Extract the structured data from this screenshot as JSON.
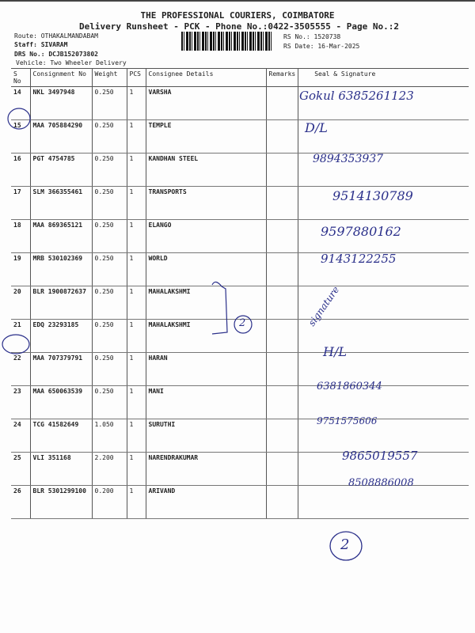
{
  "header": {
    "company": "THE PROFESSIONAL COURIERS, COIMBATORE",
    "subtitle": "Delivery Runsheet - PCK - Phone No.:0422-3505555 - Page No.:2",
    "route": "Route: OTHAKALMANDABAM",
    "staff": "Staff: SIVARAM",
    "drs": "DRS No.: DCJB152073802",
    "vehicle": "Vehicle: Two Wheeler Delivery",
    "rs_no": "RS No.: 1520738",
    "rs_date": "RS Date: 16-Mar-2025"
  },
  "table": {
    "columns": [
      "S No",
      "Consignment No",
      "Weight",
      "PCS",
      "Consignee Details",
      "Remarks",
      "Seal & Signature"
    ],
    "rows": [
      {
        "sno": "14",
        "cno": "NKL 3497948",
        "weight": "0.250",
        "pcs": "1",
        "consignee": "VARSHA"
      },
      {
        "sno": "15",
        "cno": "MAA 705884290",
        "weight": "0.250",
        "pcs": "1",
        "consignee": "TEMPLE"
      },
      {
        "sno": "16",
        "cno": "PGT 4754785",
        "weight": "0.250",
        "pcs": "1",
        "consignee": "KANDHAN STEEL"
      },
      {
        "sno": "17",
        "cno": "SLM 366355461",
        "weight": "0.250",
        "pcs": "1",
        "consignee": "TRANSPORTS"
      },
      {
        "sno": "18",
        "cno": "MAA 869365121",
        "weight": "0.250",
        "pcs": "1",
        "consignee": "ELANGO"
      },
      {
        "sno": "19",
        "cno": "MRB 530102369",
        "weight": "0.250",
        "pcs": "1",
        "consignee": "WORLD"
      },
      {
        "sno": "20",
        "cno": "BLR 1900872637",
        "weight": "0.250",
        "pcs": "1",
        "consignee": "MAHALAKSHMI"
      },
      {
        "sno": "21",
        "cno": "EDQ 23293185",
        "weight": "0.250",
        "pcs": "1",
        "consignee": "MAHALAKSHMI"
      },
      {
        "sno": "22",
        "cno": "MAA 707379791",
        "weight": "0.250",
        "pcs": "1",
        "consignee": "HARAN"
      },
      {
        "sno": "23",
        "cno": "MAA 650063539",
        "weight": "0.250",
        "pcs": "1",
        "consignee": "MANI"
      },
      {
        "sno": "24",
        "cno": "TCG 41582649",
        "weight": "1.050",
        "pcs": "1",
        "consignee": "SURUTHI"
      },
      {
        "sno": "25",
        "cno": "VLI 351168",
        "weight": "2.200",
        "pcs": "1",
        "consignee": "NARENDRAKUMAR"
      },
      {
        "sno": "26",
        "cno": "BLR 5301299100",
        "weight": "0.200",
        "pcs": "1",
        "consignee": "ARIVAND"
      }
    ]
  },
  "handwriting": {
    "s14": "Gokul 6385261123",
    "s15": "D/L",
    "s16": "9894353937",
    "s17": "9514130789",
    "s18": "9597880162",
    "s19": "9143122255",
    "s20": "signature",
    "s22": "H/L",
    "s23": "6381860344",
    "s24": "9751575606",
    "s25": "9865019557",
    "s26": "8508886008",
    "group_mark": "2",
    "footer_mark": "2"
  },
  "ink_color": "#2a2f8a"
}
